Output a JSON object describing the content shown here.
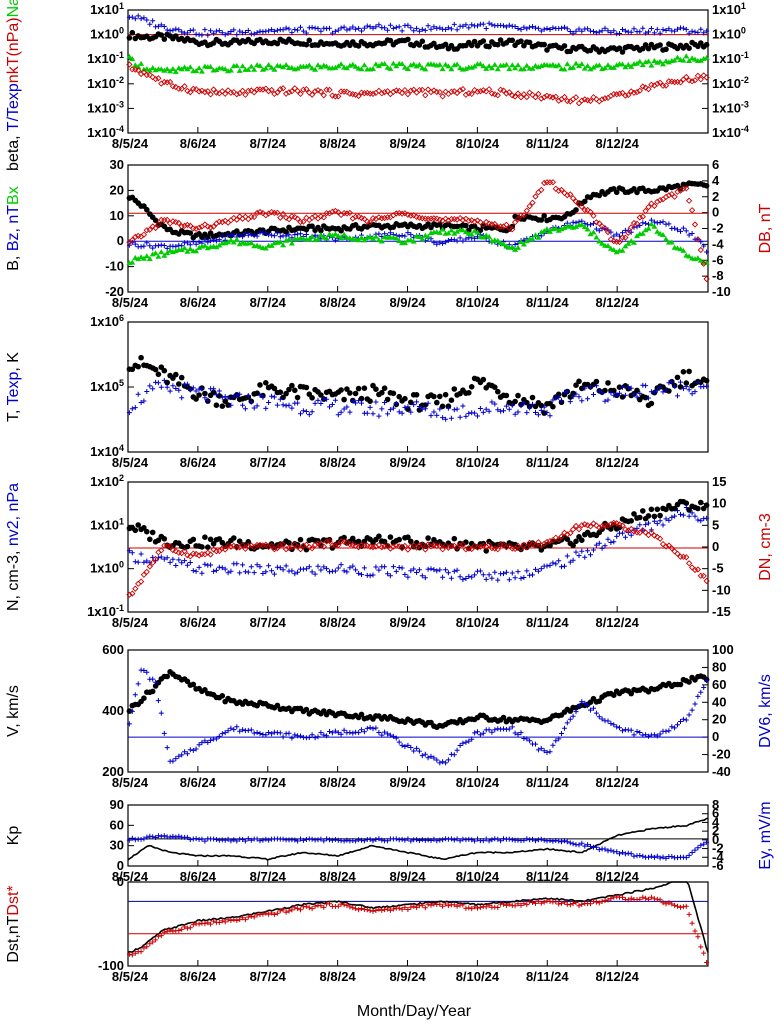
{
  "figure": {
    "xlabel": "Month/Day/Year",
    "date_ticks": [
      "8/5/24",
      "8/6/24",
      "8/7/24",
      "8/8/24",
      "8/9/24",
      "8/10/24",
      "8/11/24",
      "8/12/24"
    ]
  },
  "chart_data": [
    {
      "type": "scatter",
      "ylabel_parts": [
        {
          "text": "beta, ",
          "color": "#000000"
        },
        {
          "text": "T/Texp",
          "color": "#0000cc"
        },
        {
          "text": "nkT(nPa)",
          "color": "#cc0000"
        },
        {
          "text": "Na/Np",
          "color": "#00cc00"
        }
      ],
      "yscale": "log",
      "ylim": [
        0.0001,
        10
      ],
      "y_ticks_left": [
        "1x10-4",
        "1x10-3",
        "1x10-2",
        "1x10-1",
        "1x100",
        "1x101"
      ],
      "y_ticks_right": [
        "1x10-4",
        "1x10-3",
        "1x10-2",
        "1x10-1",
        "1x100",
        "1x101"
      ],
      "ref_lines": [
        {
          "y": 1,
          "color": "#cc0000"
        }
      ],
      "series": [
        {
          "color": "#000000",
          "marker": "dot",
          "keys": [
            0,
            0.2,
            0.5,
            1,
            1.5,
            2,
            2.5,
            3,
            3.5,
            4,
            4.5,
            5,
            5.5,
            6,
            6.5,
            7,
            7.5,
            8,
            8.3
          ],
          "values": [
            1.0,
            0.8,
            0.8,
            0.5,
            0.45,
            0.55,
            0.5,
            0.45,
            0.45,
            0.5,
            0.3,
            0.4,
            0.5,
            0.3,
            0.25,
            0.25,
            0.3,
            0.35,
            0.4
          ]
        },
        {
          "color": "#0000cc",
          "marker": "plus",
          "keys": [
            0,
            0.2,
            0.5,
            1,
            1.5,
            2,
            2.5,
            3,
            3.5,
            4,
            4.5,
            5,
            5.5,
            6,
            6.5,
            7,
            7.5,
            8,
            8.3
          ],
          "values": [
            6,
            4,
            2,
            1.2,
            1.2,
            1.5,
            1.5,
            1.5,
            2,
            1.8,
            1.8,
            2.5,
            1.8,
            1.5,
            1.5,
            1.3,
            1.5,
            1.5,
            1.2
          ]
        },
        {
          "color": "#00cc00",
          "marker": "triangle",
          "keys": [
            0,
            0.2,
            0.5,
            1,
            1.5,
            2,
            2.5,
            3,
            3.5,
            4,
            4.5,
            5,
            5.5,
            6,
            6.5,
            7,
            7.5,
            8,
            8.3
          ],
          "values": [
            0.1,
            0.05,
            0.03,
            0.04,
            0.04,
            0.045,
            0.045,
            0.05,
            0.05,
            0.05,
            0.05,
            0.05,
            0.05,
            0.05,
            0.05,
            0.05,
            0.07,
            0.1,
            0.12
          ]
        },
        {
          "color": "#cc0000",
          "marker": "diamond",
          "keys": [
            0,
            0.2,
            0.5,
            1,
            1.5,
            2,
            2.5,
            3,
            3.5,
            4,
            4.5,
            5,
            5.5,
            6,
            6.5,
            7,
            7.5,
            8,
            8.3
          ],
          "values": [
            0.05,
            0.03,
            0.01,
            0.005,
            0.004,
            0.005,
            0.005,
            0.004,
            0.004,
            0.005,
            0.004,
            0.005,
            0.004,
            0.003,
            0.002,
            0.003,
            0.008,
            0.015,
            0.02
          ]
        }
      ]
    },
    {
      "type": "scatter",
      "ylabel_parts": [
        {
          "text": "B, ",
          "color": "#000000"
        },
        {
          "text": "Bz, nT",
          "color": "#0000cc"
        },
        {
          "text": "Bx",
          "color": "#00cc00"
        }
      ],
      "ylabel_right_parts": [
        {
          "text": "DB, nT",
          "color": "#cc0000"
        }
      ],
      "yscale": "linear",
      "ylim": [
        -20,
        30
      ],
      "y2lim": [
        -10,
        6
      ],
      "y_ticks_left": [
        "-20",
        "-10",
        "0",
        "10",
        "20",
        "30"
      ],
      "y_ticks_right": [
        "-10",
        "-8",
        "-6",
        "-4",
        "-2",
        "0",
        "2",
        "4",
        "6"
      ],
      "ref_lines": [
        {
          "y": 0,
          "color": "#0000cc"
        },
        {
          "y": 11,
          "color": "#cc0000"
        }
      ],
      "series": [
        {
          "color": "#000000",
          "marker": "dot",
          "keys": [
            0,
            0.2,
            0.4,
            0.6,
            1,
            1.5,
            2,
            2.5,
            3,
            3.5,
            4,
            4.5,
            5,
            5.5,
            5.5,
            6,
            6.3,
            6.6,
            7,
            7.5,
            8,
            8.3
          ],
          "values": [
            18,
            14,
            8,
            4,
            2,
            3,
            4,
            5,
            5,
            6,
            6,
            6,
            5,
            5,
            10,
            9,
            10,
            18,
            20,
            20,
            22,
            22
          ]
        },
        {
          "color": "#0000cc",
          "marker": "plus",
          "keys": [
            0,
            0.5,
            1,
            1.5,
            2,
            2.5,
            3,
            3.5,
            4,
            4.5,
            5,
            5.5,
            6,
            6.5,
            7,
            7.5,
            8,
            8.3
          ],
          "values": [
            -1,
            -2,
            -1,
            2,
            3,
            2,
            1,
            2,
            3,
            -1,
            2,
            -2,
            4,
            8,
            2,
            8,
            4,
            -4
          ]
        },
        {
          "color": "#00cc00",
          "marker": "triangle",
          "keys": [
            0,
            0.5,
            1,
            1.5,
            2,
            2.5,
            3,
            3.5,
            4,
            4.5,
            5,
            5.5,
            6,
            6.5,
            7,
            7.5,
            8,
            8.3
          ],
          "values": [
            -8,
            -5,
            -3,
            0,
            -2,
            1,
            2,
            1,
            0,
            4,
            3,
            -3,
            4,
            6,
            -5,
            6,
            -6,
            -8
          ]
        },
        {
          "color": "#cc0000",
          "marker": "diamond",
          "keys": [
            0,
            0.5,
            1,
            1.5,
            2,
            2.5,
            3,
            3.5,
            4,
            4.5,
            5,
            5.5,
            6,
            6.5,
            7,
            7.5,
            8,
            8.3
          ],
          "values": [
            -4,
            -1,
            -2,
            -1,
            0,
            -1,
            0,
            -1,
            0,
            -1,
            -1,
            -2,
            4,
            1,
            -4,
            1,
            3,
            -9
          ]
        }
      ]
    },
    {
      "type": "scatter",
      "ylabel_parts": [
        {
          "text": "T, ",
          "color": "#000000"
        },
        {
          "text": "Texp",
          "color": "#0000cc"
        },
        {
          "text": ", K",
          "color": "#000000"
        }
      ],
      "yscale": "log",
      "ylim": [
        10000,
        1000000
      ],
      "y_ticks_left": [
        "1x104",
        "1x105",
        "1x106"
      ],
      "series": [
        {
          "color": "#000000",
          "marker": "dot",
          "keys": [
            0,
            0.3,
            0.6,
            1,
            1.5,
            2,
            2.5,
            3,
            3.5,
            4,
            4.5,
            5,
            5.5,
            6,
            6.5,
            7,
            7.5,
            8,
            8.3
          ],
          "values": [
            250000,
            200000,
            130000,
            80000,
            60000,
            90000,
            80000,
            70000,
            80000,
            60000,
            55000,
            120000,
            70000,
            50000,
            100000,
            90000,
            60000,
            150000,
            100000
          ]
        },
        {
          "color": "#0000cc",
          "marker": "plus",
          "keys": [
            0,
            0.5,
            1,
            1.5,
            2,
            2.5,
            3,
            3.5,
            4,
            4.5,
            5,
            5.5,
            6,
            6.5,
            7,
            7.5,
            8,
            8.3
          ],
          "values": [
            50000,
            100000,
            80000,
            60000,
            60000,
            50000,
            50000,
            45000,
            50000,
            40000,
            45000,
            50000,
            45000,
            80000,
            80000,
            90000,
            100000,
            120000
          ]
        }
      ]
    },
    {
      "type": "scatter",
      "ylabel_parts": [
        {
          "text": "N, cm-3, ",
          "color": "#000000"
        },
        {
          "text": "nv2, nPa",
          "color": "#0000cc"
        }
      ],
      "ylabel_right_parts": [
        {
          "text": "DN, cm-3",
          "color": "#cc0000"
        }
      ],
      "yscale": "log",
      "ylim": [
        0.1,
        100
      ],
      "y2lim": [
        -15,
        15
      ],
      "y_ticks_left": [
        "1x10-1",
        "1x100",
        "1x101",
        "1x102"
      ],
      "y_ticks_right": [
        "-15",
        "-10",
        "-5",
        "0",
        "5",
        "10",
        "15"
      ],
      "ref_lines": [
        {
          "y": 3,
          "color": "#cc0000"
        }
      ],
      "series": [
        {
          "color": "#000000",
          "marker": "dot",
          "keys": [
            0,
            0.3,
            0.6,
            1,
            1.5,
            2,
            2.5,
            3,
            3.5,
            4,
            4.5,
            5,
            5.5,
            6,
            6.5,
            7,
            7.5,
            8,
            8.3
          ],
          "values": [
            10,
            6,
            4,
            4,
            4,
            3.5,
            3.5,
            4,
            4.5,
            4,
            4,
            3.5,
            3,
            3,
            5,
            10,
            20,
            30,
            25
          ]
        },
        {
          "color": "#0000cc",
          "marker": "plus",
          "keys": [
            0,
            0.5,
            1,
            1.5,
            2,
            2.5,
            3,
            3.5,
            4,
            4.5,
            5,
            5.5,
            6,
            6.5,
            7,
            7.5,
            8,
            8.3
          ],
          "values": [
            2,
            1.5,
            1,
            1,
            0.9,
            0.9,
            1,
            0.9,
            0.8,
            0.8,
            0.7,
            0.7,
            1,
            2,
            5,
            10,
            20,
            15
          ]
        },
        {
          "color": "#cc0000",
          "marker": "diamond",
          "keys": [
            0,
            0.5,
            1,
            1.5,
            2,
            2.5,
            3,
            3.5,
            4,
            4.5,
            5,
            5.5,
            6,
            6.5,
            7,
            7.5,
            8,
            8.3
          ],
          "values": [
            -12,
            0,
            -2,
            0,
            0,
            0,
            1,
            0,
            0,
            0,
            0,
            0,
            1,
            5,
            5,
            3,
            -3,
            -8
          ]
        }
      ]
    },
    {
      "type": "scatter",
      "ylabel_parts": [
        {
          "text": "V, km/s",
          "color": "#000000"
        }
      ],
      "ylabel_right_parts": [
        {
          "text": "DV6, km/s",
          "color": "#0000cc"
        }
      ],
      "yscale": "linear",
      "ylim": [
        200,
        600
      ],
      "y2lim": [
        -40,
        100
      ],
      "y_ticks_left": [
        "200",
        "400",
        "600"
      ],
      "y_ticks_right": [
        "-40",
        "-20",
        "0",
        "20",
        "40",
        "60",
        "80",
        "100"
      ],
      "ref_lines": [
        {
          "y": 0,
          "color": "#0000cc",
          "axis": "right"
        }
      ],
      "series": [
        {
          "color": "#000000",
          "marker": "dot",
          "keys": [
            0,
            0.3,
            0.6,
            1,
            1.5,
            2,
            2.5,
            3,
            3.5,
            4,
            4.5,
            5,
            5.5,
            6,
            6.5,
            7,
            7.5,
            8,
            8.3
          ],
          "values": [
            400,
            460,
            530,
            470,
            430,
            420,
            400,
            390,
            380,
            370,
            350,
            380,
            370,
            370,
            420,
            460,
            470,
            500,
            510
          ]
        },
        {
          "color": "#0000cc",
          "marker": "plus",
          "keys": [
            0,
            0.2,
            0.4,
            0.6,
            1,
            1.5,
            2,
            2.5,
            3,
            3.5,
            4,
            4.5,
            5,
            5.5,
            6,
            6.5,
            7,
            7.5,
            8,
            8.3
          ],
          "values": [
            10,
            80,
            60,
            -30,
            -10,
            10,
            5,
            0,
            5,
            10,
            -10,
            -30,
            5,
            10,
            -20,
            40,
            10,
            0,
            20,
            70
          ]
        }
      ]
    },
    {
      "type": "line",
      "ylabel_parts": [
        {
          "text": "Kp",
          "color": "#000000"
        }
      ],
      "ylabel_right_parts": [
        {
          "text": "Ey, mV/m",
          "color": "#0000cc"
        }
      ],
      "yscale": "linear",
      "ylim": [
        0,
        90
      ],
      "y2lim": [
        -6,
        8
      ],
      "y_ticks_left": [
        "0",
        "30",
        "60",
        "90"
      ],
      "y_ticks_right": [
        "-6",
        "-4",
        "-2",
        "0",
        "2",
        "4",
        "6",
        "8"
      ],
      "ref_lines": [
        {
          "y": 40,
          "color": "#000000"
        }
      ],
      "series": [
        {
          "color": "#000000",
          "marker": "line",
          "keys": [
            0,
            0.3,
            0.6,
            1,
            1.5,
            2,
            2.5,
            3,
            3.5,
            4,
            4.5,
            5,
            5.5,
            6,
            6.5,
            7,
            7.5,
            8,
            8.3
          ],
          "values": [
            10,
            30,
            20,
            15,
            15,
            10,
            20,
            15,
            30,
            20,
            10,
            20,
            20,
            25,
            20,
            45,
            55,
            60,
            70
          ]
        },
        {
          "color": "#0000cc",
          "marker": "plus",
          "keys": [
            0,
            0.5,
            1,
            1.5,
            2,
            2.5,
            3,
            3.5,
            4,
            4.5,
            5,
            5.5,
            6,
            6.5,
            7,
            7.5,
            8,
            8.3
          ],
          "values": [
            0,
            1,
            0,
            0,
            0,
            0,
            0,
            0,
            0,
            0,
            0,
            0,
            0,
            -1,
            -3,
            -4,
            -4,
            0
          ]
        }
      ]
    },
    {
      "type": "line",
      "ylabel_parts": [
        {
          "text": "Dst,nT",
          "color": "#000000"
        },
        {
          "text": "Dst*",
          "color": "#cc0000"
        }
      ],
      "yscale": "linear",
      "ylim": [
        -100,
        30
      ],
      "y_ticks_left": [
        "-100",
        "0"
      ],
      "ref_lines": [
        {
          "y": 0,
          "color": "#000099"
        },
        {
          "y": -50,
          "color": "#cc0000"
        }
      ],
      "series": [
        {
          "color": "#000000",
          "marker": "line",
          "keys": [
            0,
            0.2,
            0.5,
            1,
            1.5,
            2,
            2.5,
            3,
            3.5,
            4,
            4.5,
            5,
            5.5,
            6,
            6.5,
            7,
            7.5,
            7.8,
            8,
            8.3
          ],
          "values": [
            -80,
            -70,
            -45,
            -30,
            -25,
            -15,
            -5,
            0,
            -10,
            -5,
            0,
            -5,
            0,
            5,
            0,
            10,
            20,
            30,
            35,
            -80
          ]
        },
        {
          "color": "#cc0000",
          "marker": "plus",
          "keys": [
            0,
            0.2,
            0.5,
            1,
            1.5,
            2,
            2.5,
            3,
            3.5,
            4,
            4.5,
            5,
            5.5,
            6,
            6.5,
            7,
            7.5,
            7.8,
            8,
            8.3
          ],
          "values": [
            -85,
            -75,
            -50,
            -35,
            -30,
            -20,
            -10,
            -5,
            -15,
            -10,
            -5,
            -10,
            -5,
            0,
            -5,
            5,
            5,
            -5,
            -10,
            -100
          ]
        }
      ]
    }
  ]
}
